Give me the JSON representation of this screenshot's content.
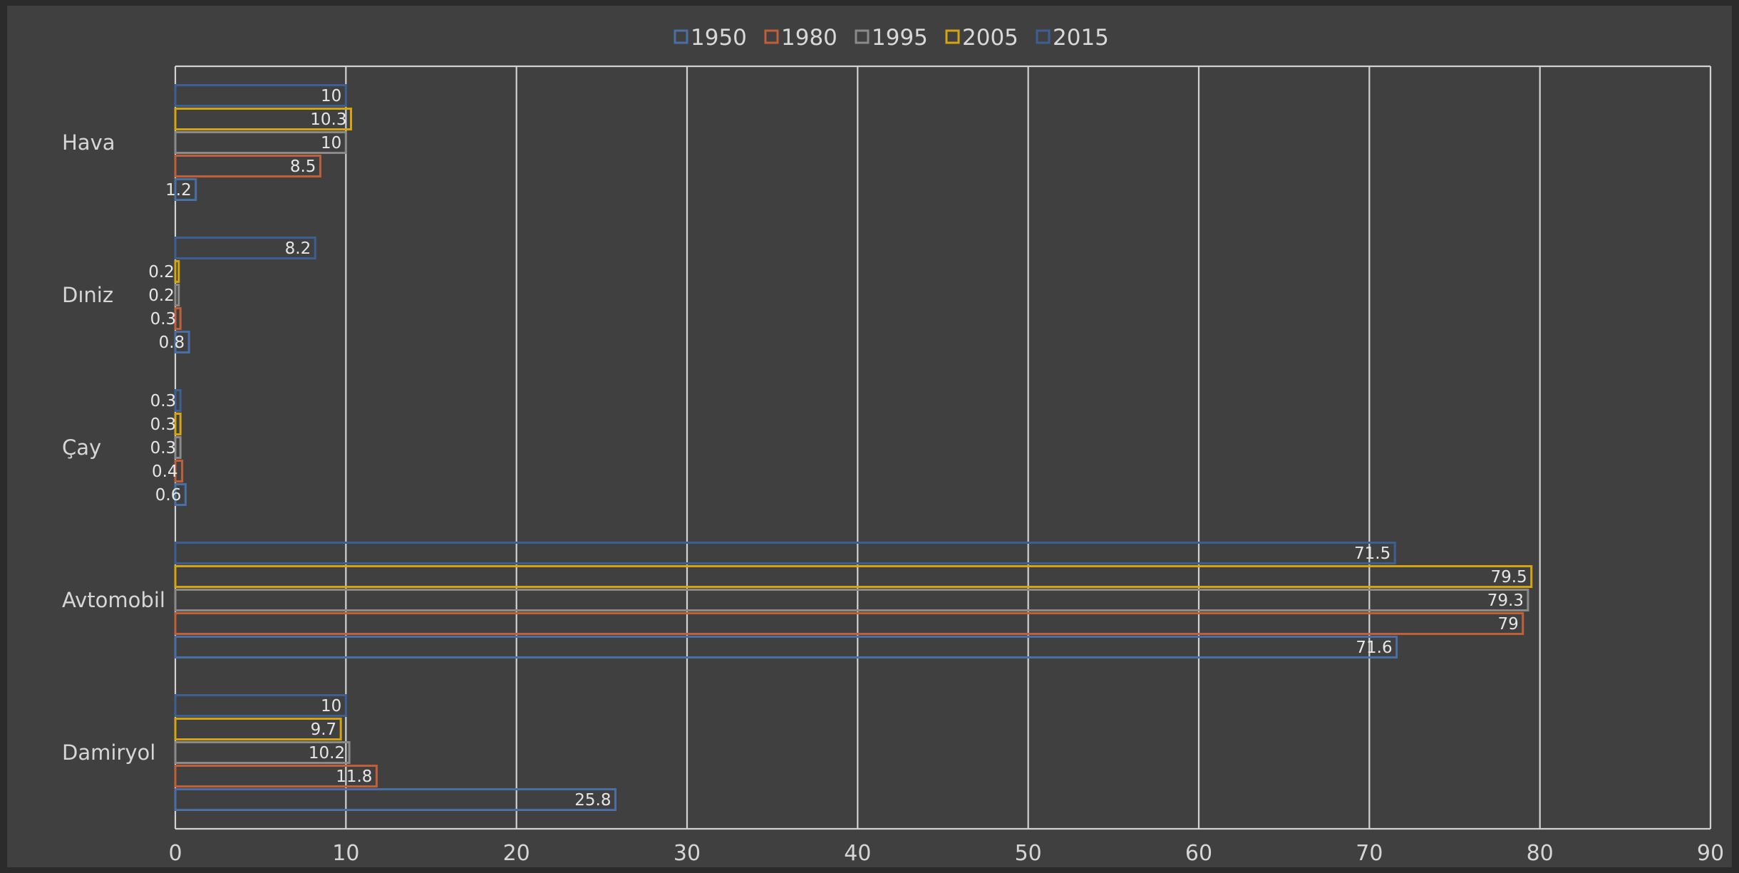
{
  "chart_data": {
    "type": "bar",
    "orientation": "horizontal",
    "categories": [
      "Hava",
      "Dəniz",
      "Çay",
      "Avtomobil",
      "Dəmiryol"
    ],
    "category_labels_drawn": [
      "Hava",
      "Dıniz",
      "Çay",
      "Avtomobil",
      "Damiryol"
    ],
    "series": [
      {
        "name": "1950",
        "color": "#4a6fa5",
        "values": [
          1.2,
          0.8,
          0.6,
          71.6,
          25.8
        ]
      },
      {
        "name": "1980",
        "color": "#c0603a",
        "values": [
          8.5,
          0.3,
          0.4,
          79,
          11.8
        ]
      },
      {
        "name": "1995",
        "color": "#8a8a8a",
        "values": [
          10,
          0.2,
          0.3,
          79.3,
          10.2
        ]
      },
      {
        "name": "2005",
        "color": "#d4a412",
        "values": [
          10.3,
          0.2,
          0.3,
          79.5,
          9.7
        ]
      },
      {
        "name": "2015",
        "color": "#3d5f92",
        "values": [
          10,
          8.2,
          0.3,
          71.5,
          10
        ]
      }
    ],
    "x_ticks": [
      "0",
      "10",
      "20",
      "30",
      "40",
      "50",
      "60",
      "70",
      "80",
      "90"
    ],
    "xlim": [
      0,
      90
    ],
    "grid": "vertical",
    "legend": "top-center",
    "title": "",
    "xlabel": "",
    "ylabel": ""
  }
}
